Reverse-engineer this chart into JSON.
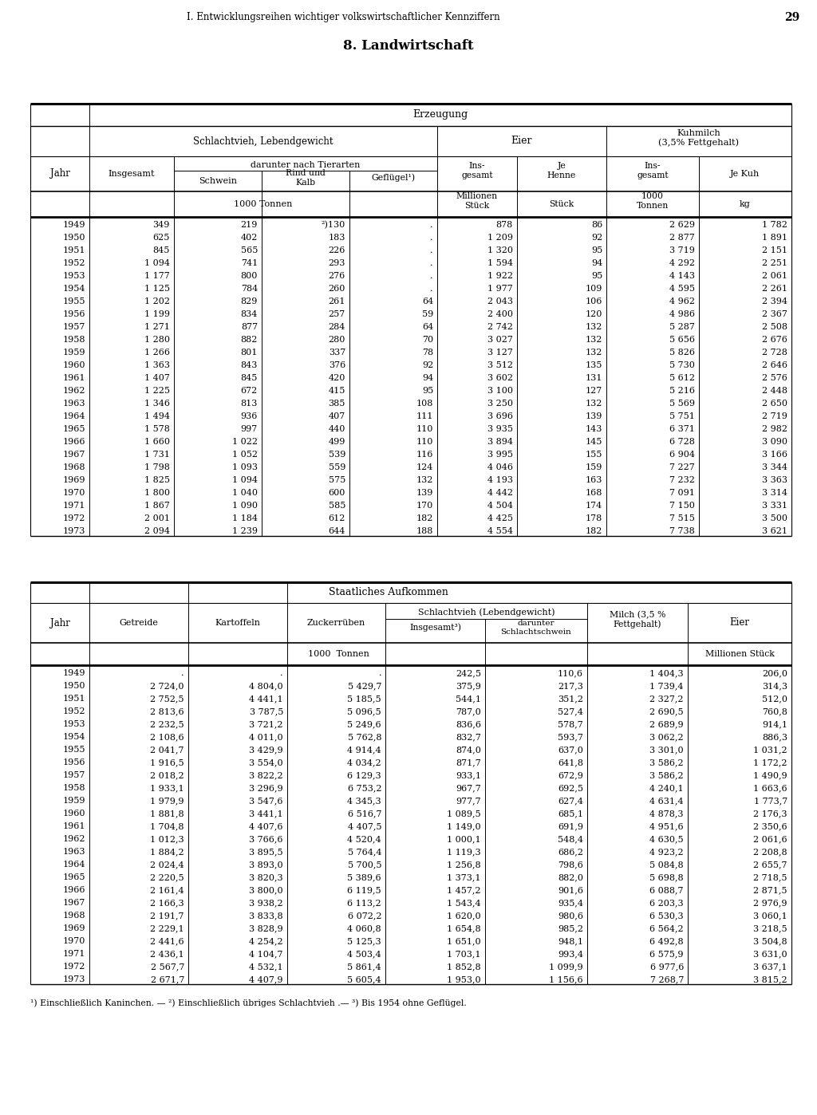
{
  "page_header": "I. Entwicklungsreihen wichtiger volkswirtschaftlicher Kennziffern",
  "page_number": "29",
  "section_title": "8. Landwirtschaft",
  "table1_data": [
    [
      "1949",
      "349",
      "219",
      "²)130",
      ".",
      "878",
      "86",
      "2 629",
      "1 782"
    ],
    [
      "1950",
      "625",
      "402",
      "183",
      ".",
      "1 209",
      "92",
      "2 877",
      "1 891"
    ],
    [
      "1951",
      "845",
      "565",
      "226",
      ".",
      "1 320",
      "95",
      "3 719",
      "2 151"
    ],
    [
      "1952",
      "1 094",
      "741",
      "293",
      ".",
      "1 594",
      "94",
      "4 292",
      "2 251"
    ],
    [
      "1953",
      "1 177",
      "800",
      "276",
      ".",
      "1 922",
      "95",
      "4 143",
      "2 061"
    ],
    [
      "1954",
      "1 125",
      "784",
      "260",
      ".",
      "1 977",
      "109",
      "4 595",
      "2 261"
    ],
    [
      "1955",
      "1 202",
      "829",
      "261",
      "64",
      "2 043",
      "106",
      "4 962",
      "2 394"
    ],
    [
      "1956",
      "1 199",
      "834",
      "257",
      "59",
      "2 400",
      "120",
      "4 986",
      "2 367"
    ],
    [
      "1957",
      "1 271",
      "877",
      "284",
      "64",
      "2 742",
      "132",
      "5 287",
      "2 508"
    ],
    [
      "1958",
      "1 280",
      "882",
      "280",
      "70",
      "3 027",
      "132",
      "5 656",
      "2 676"
    ],
    [
      "1959",
      "1 266",
      "801",
      "337",
      "78",
      "3 127",
      "132",
      "5 826",
      "2 728"
    ],
    [
      "1960",
      "1 363",
      "843",
      "376",
      "92",
      "3 512",
      "135",
      "5 730",
      "2 646"
    ],
    [
      "1961",
      "1 407",
      "845",
      "420",
      "94",
      "3 602",
      "131",
      "5 612",
      "2 576"
    ],
    [
      "1962",
      "1 225",
      "672",
      "415",
      "95",
      "3 100",
      "127",
      "5 216",
      "2 448"
    ],
    [
      "1963",
      "1 346",
      "813",
      "385",
      "108",
      "3 250",
      "132",
      "5 569",
      "2 650"
    ],
    [
      "1964",
      "1 494",
      "936",
      "407",
      "111",
      "3 696",
      "139",
      "5 751",
      "2 719"
    ],
    [
      "1965",
      "1 578",
      "997",
      "440",
      "110",
      "3 935",
      "143",
      "6 371",
      "2 982"
    ],
    [
      "1966",
      "1 660",
      "1 022",
      "499",
      "110",
      "3 894",
      "145",
      "6 728",
      "3 090"
    ],
    [
      "1967",
      "1 731",
      "1 052",
      "539",
      "116",
      "3 995",
      "155",
      "6 904",
      "3 166"
    ],
    [
      "1968",
      "1 798",
      "1 093",
      "559",
      "124",
      "4 046",
      "159",
      "7 227",
      "3 344"
    ],
    [
      "1969",
      "1 825",
      "1 094",
      "575",
      "132",
      "4 193",
      "163",
      "7 232",
      "3 363"
    ],
    [
      "1970",
      "1 800",
      "1 040",
      "600",
      "139",
      "4 442",
      "168",
      "7 091",
      "3 314"
    ],
    [
      "1971",
      "1 867",
      "1 090",
      "585",
      "170",
      "4 504",
      "174",
      "7 150",
      "3 331"
    ],
    [
      "1972",
      "2 001",
      "1 184",
      "612",
      "182",
      "4 425",
      "178",
      "7 515",
      "3 500"
    ],
    [
      "1973",
      "2 094",
      "1 239",
      "644",
      "188",
      "4 554",
      "182",
      "7 738",
      "3 621"
    ]
  ],
  "table2_data": [
    [
      "1949",
      ".",
      ".",
      ".",
      "242,5",
      "110,6",
      "1 404,3",
      "206,0"
    ],
    [
      "1950",
      "2 724,0",
      "4 804,0",
      "5 429,7",
      "375,9",
      "217,3",
      "1 739,4",
      "314,3"
    ],
    [
      "1951",
      "2 752,5",
      "4 441,1",
      "5 185,5",
      "544,1",
      "351,2",
      "2 327,2",
      "512,0"
    ],
    [
      "1952",
      "2 813,6",
      "3 787,5",
      "5 096,5",
      "787,0",
      "527,4",
      "2 690,5",
      "760,8"
    ],
    [
      "1953",
      "2 232,5",
      "3 721,2",
      "5 249,6",
      "836,6",
      "578,7",
      "2 689,9",
      "914,1"
    ],
    [
      "1954",
      "2 108,6",
      "4 011,0",
      "5 762,8",
      "832,7",
      "593,7",
      "3 062,2",
      "886,3"
    ],
    [
      "1955",
      "2 041,7",
      "3 429,9",
      "4 914,4",
      "874,0",
      "637,0",
      "3 301,0",
      "1 031,2"
    ],
    [
      "1956",
      "1 916,5",
      "3 554,0",
      "4 034,2",
      "871,7",
      "641,8",
      "3 586,2",
      "1 172,2"
    ],
    [
      "1957",
      "2 018,2",
      "3 822,2",
      "6 129,3",
      "933,1",
      "672,9",
      "3 586,2",
      "1 490,9"
    ],
    [
      "1958",
      "1 933,1",
      "3 296,9",
      "6 753,2",
      "967,7",
      "692,5",
      "4 240,1",
      "1 663,6"
    ],
    [
      "1959",
      "1 979,9",
      "3 547,6",
      "4 345,3",
      "977,7",
      "627,4",
      "4 631,4",
      "1 773,7"
    ],
    [
      "1960",
      "1 881,8",
      "3 441,1",
      "6 516,7",
      "1 089,5",
      "685,1",
      "4 878,3",
      "2 176,3"
    ],
    [
      "1961",
      "1 704,8",
      "4 407,6",
      "4 407,5",
      "1 149,0",
      "691,9",
      "4 951,6",
      "2 350,6"
    ],
    [
      "1962",
      "1 012,3",
      "3 766,6",
      "4 520,4",
      "1 000,1",
      "548,4",
      "4 630,5",
      "2 061,6"
    ],
    [
      "1963",
      "1 884,2",
      "3 895,5",
      "5 764,4",
      "1 119,3",
      "686,2",
      "4 923,2",
      "2 208,8"
    ],
    [
      "1964",
      "2 024,4",
      "3 893,0",
      "5 700,5",
      "1 256,8",
      "798,6",
      "5 084,8",
      "2 655,7"
    ],
    [
      "1965",
      "2 220,5",
      "3 820,3",
      "5 389,6",
      "1 373,1",
      "882,0",
      "5 698,8",
      "2 718,5"
    ],
    [
      "1966",
      "2 161,4",
      "3 800,0",
      "6 119,5",
      "1 457,2",
      "901,6",
      "6 088,7",
      "2 871,5"
    ],
    [
      "1967",
      "2 166,3",
      "3 938,2",
      "6 113,2",
      "1 543,4",
      "935,4",
      "6 203,3",
      "2 976,9"
    ],
    [
      "1968",
      "2 191,7",
      "3 833,8",
      "6 072,2",
      "1 620,0",
      "980,6",
      "6 530,3",
      "3 060,1"
    ],
    [
      "1969",
      "2 229,1",
      "3 828,9",
      "4 060,8",
      "1 654,8",
      "985,2",
      "6 564,2",
      "3 218,5"
    ],
    [
      "1970",
      "2 441,6",
      "4 254,2",
      "5 125,3",
      "1 651,0",
      "948,1",
      "6 492,8",
      "3 504,8"
    ],
    [
      "1971",
      "2 436,1",
      "4 104,7",
      "4 503,4",
      "1 703,1",
      "993,4",
      "6 575,9",
      "3 631,0"
    ],
    [
      "1972",
      "2 567,7",
      "4 532,1",
      "5 861,4",
      "1 852,8",
      "1 099,9",
      "6 977,6",
      "3 637,1"
    ],
    [
      "1973",
      "2 671,7",
      "4 407,9",
      "5 605,4",
      "1 953,0",
      "1 156,6",
      "7 268,7",
      "3 815,2"
    ]
  ],
  "footnotes": "¹) Einschließlich Kaninchen. — ²) Einschließlich übriges Schlachtvieh .— ³) Bis 1954 ohne Geflügel.",
  "bg_color": "#ffffff",
  "text_color": "#000000",
  "line_color": "#000000"
}
